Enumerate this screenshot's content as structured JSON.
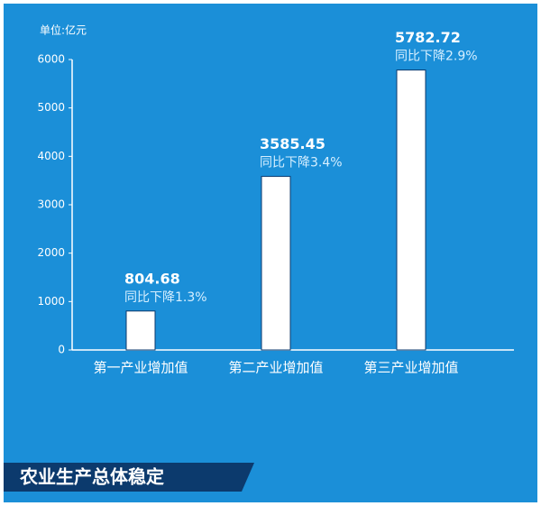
{
  "chart_data": {
    "type": "bar",
    "unit_label": "单位:亿元",
    "categories": [
      "第一产业增加值",
      "第二产业增加值",
      "第三产业增加值"
    ],
    "values": [
      804.68,
      3585.45,
      5782.72
    ],
    "annotations": [
      "同比下降1.3%",
      "同比下降3.4%",
      "同比下降2.9%"
    ],
    "color": "#ffffff",
    "ylim": [
      0,
      6000
    ],
    "yticks": [
      0,
      1000,
      2000,
      3000,
      4000,
      5000,
      6000
    ],
    "banner": "农业生产总体稳定"
  }
}
